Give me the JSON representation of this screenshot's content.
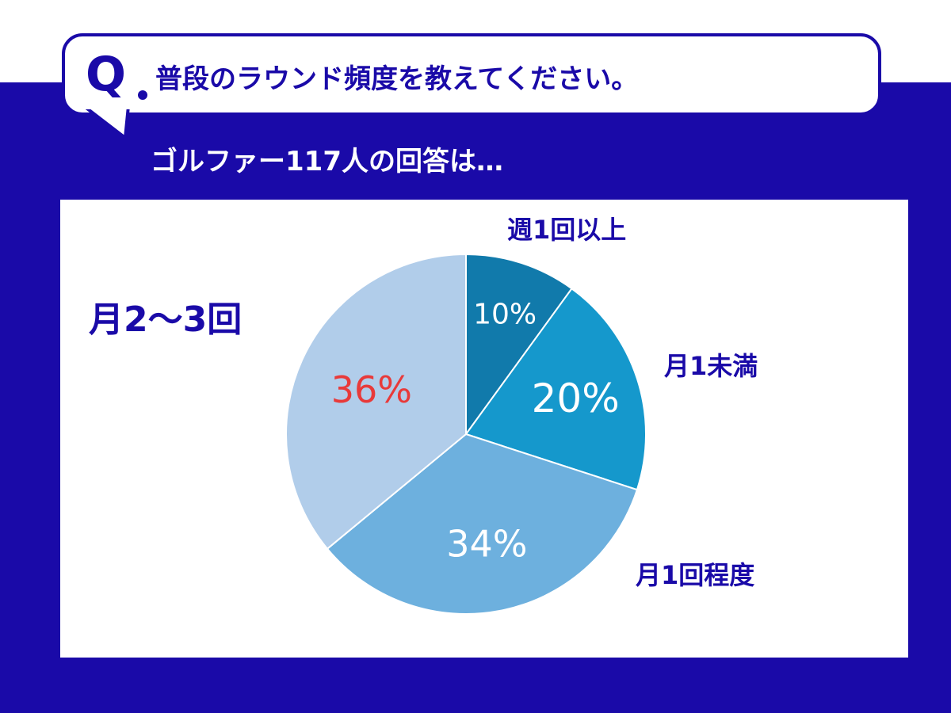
{
  "question": {
    "mark": "Q",
    "text": "普段のラウンド頻度を教えてください。"
  },
  "subtitle": "ゴルファー117人の回答は…",
  "colors": {
    "background": "#1a0aa8",
    "label_text": "#1a0aa8",
    "highlight": "#e83a3a"
  },
  "chart_data": {
    "type": "pie",
    "title": "",
    "slices": [
      {
        "label": "週1回以上",
        "value": 10,
        "value_label": "10%",
        "color": "#117aab",
        "label_color": "#ffffff"
      },
      {
        "label": "月1未満",
        "value": 20,
        "value_label": "20%",
        "color": "#1598cc",
        "label_color": "#ffffff"
      },
      {
        "label": "月1回程度",
        "value": 34,
        "value_label": "34%",
        "color": "#6db0de",
        "label_color": "#ffffff"
      },
      {
        "label": "月2〜3回",
        "value": 36,
        "value_label": "36%",
        "color": "#b1cdea",
        "label_color": "#e83a3a"
      }
    ]
  }
}
